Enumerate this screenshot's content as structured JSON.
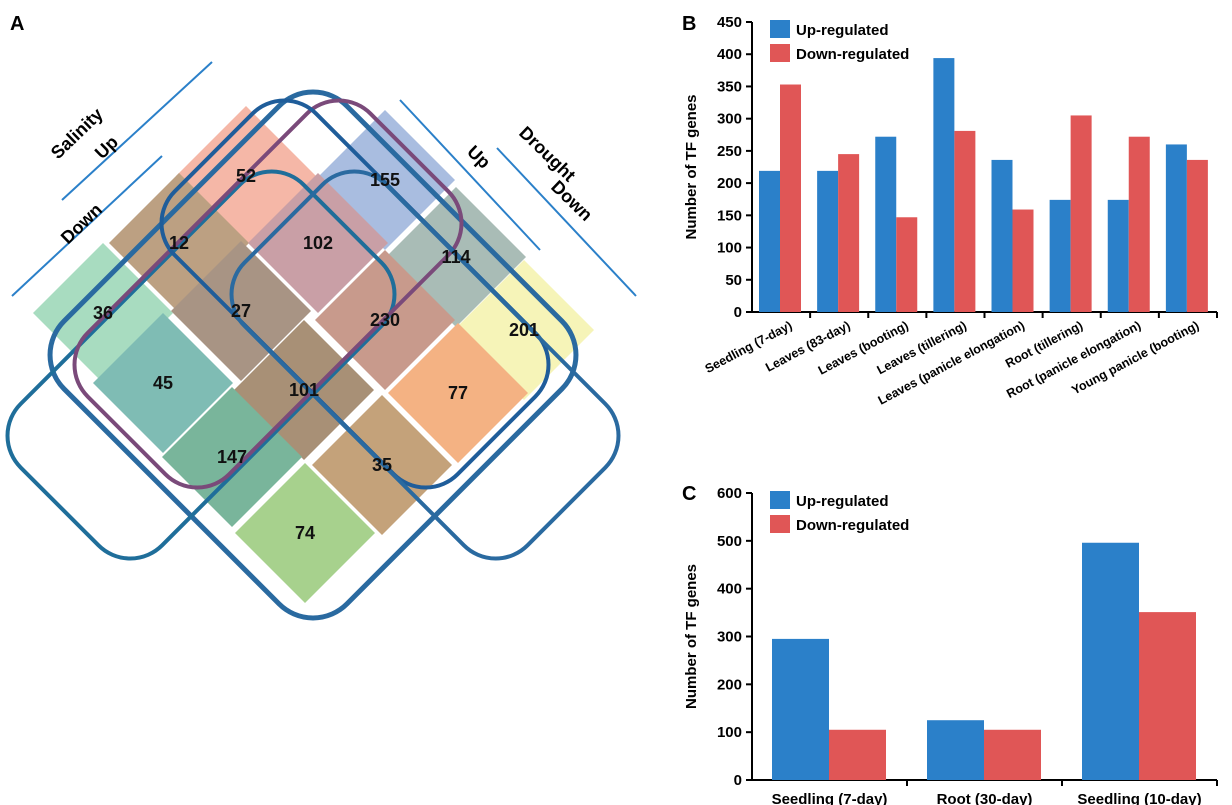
{
  "panels": {
    "a": "A",
    "b": "B",
    "c": "C"
  },
  "venn": {
    "sets": {
      "salinity": "Salinity",
      "salinity_up": "Up",
      "salinity_down": "Down",
      "drought": "Drought",
      "drought_up": "Up",
      "drought_down": "Down"
    },
    "regions": [
      {
        "id": "sdown-only",
        "count": "36",
        "fill": "#a8dcc0"
      },
      {
        "id": "sup-only",
        "count": "52",
        "fill": "#f5b7a7"
      },
      {
        "id": "dup-only",
        "count": "155",
        "fill": "#a9bde0"
      },
      {
        "id": "ddown-only",
        "count": "201",
        "fill": "#f6f4b8"
      },
      {
        "id": "sdown-sup",
        "count": "12",
        "fill": "#bca082"
      },
      {
        "id": "sup-dup",
        "count": "102",
        "fill": "#c99fa6"
      },
      {
        "id": "dup-ddown",
        "count": "114",
        "fill": "#a9bcb6"
      },
      {
        "id": "sdown-sup-dup",
        "count": "27",
        "fill": "#a89484"
      },
      {
        "id": "sup-dup-ddown",
        "count": "230",
        "fill": "#c89a8c"
      },
      {
        "id": "sdown-ddown",
        "count": "45",
        "fill": "#7fbcb4"
      },
      {
        "id": "all-four",
        "count": "101",
        "fill": "#a89076"
      },
      {
        "id": "sup-ddown",
        "count": "77",
        "fill": "#f4b283"
      },
      {
        "id": "sdown-dup-ddown",
        "count": "147",
        "fill": "#79b59b"
      },
      {
        "id": "sup-sdown-ddown",
        "count": "35",
        "fill": "#c4a27a"
      },
      {
        "id": "dup-sdown",
        "count": "74",
        "fill": "#a7d18d"
      }
    ]
  },
  "chart_data": [
    {
      "type": "bar",
      "panel": "B",
      "categories": [
        "Seedling (7-day)",
        "Leaves (83-day)",
        "Leaves (booting)",
        "Leaves (tillering)",
        "Leaves (panicle elongation)",
        "Root (tillering)",
        "Root (panicle elongation)",
        "Young panicle (booting)"
      ],
      "series": [
        {
          "name": "Up-regulated",
          "color": "#2b80c9",
          "values": [
            219,
            219,
            272,
            394,
            236,
            174,
            174,
            260
          ]
        },
        {
          "name": "Down-regulated",
          "color": "#e05656",
          "values": [
            353,
            245,
            147,
            281,
            159,
            305,
            272,
            236
          ]
        }
      ],
      "ylabel": "Number of TF genes",
      "ylim": [
        0,
        450
      ],
      "yticks": [
        "0",
        "50",
        "100",
        "150",
        "200",
        "250",
        "300",
        "350",
        "400",
        "450"
      ],
      "legend": "top-left",
      "grid": false
    },
    {
      "type": "bar",
      "panel": "C",
      "categories": [
        "Seedling (7-day)",
        "Root (30-day)",
        "Seedling (10-day)"
      ],
      "series": [
        {
          "name": "Up-regulated",
          "color": "#2b80c9",
          "values": [
            295,
            125,
            496
          ]
        },
        {
          "name": "Down-regulated",
          "color": "#e05656",
          "values": [
            105,
            105,
            351
          ]
        }
      ],
      "ylabel": "Number of TF genes",
      "ylim": [
        0,
        600
      ],
      "yticks": [
        "0",
        "100",
        "200",
        "300",
        "400",
        "500",
        "600"
      ],
      "legend": "top-left",
      "grid": false
    }
  ]
}
